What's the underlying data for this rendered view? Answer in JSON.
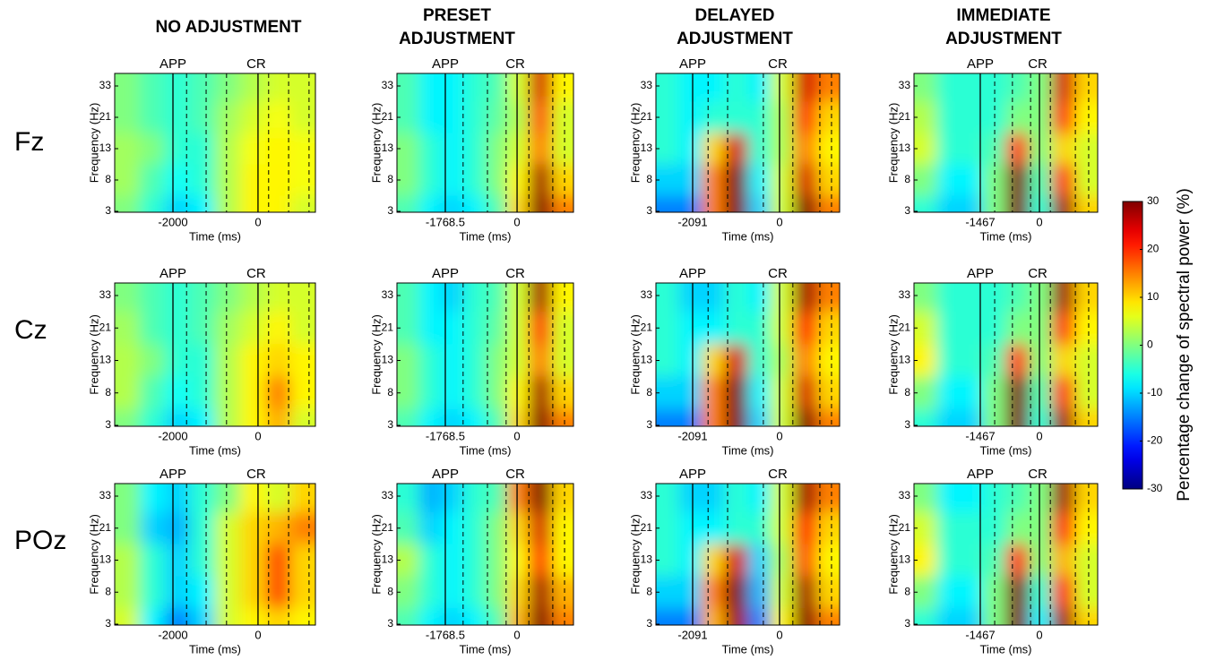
{
  "chart_data": {
    "type": "heatmap",
    "x_label": "Time (ms)",
    "y_label": "Frequency (Hz)",
    "yticks": [
      3,
      8,
      13,
      21,
      33
    ],
    "event_labels": [
      "APP",
      "CR"
    ],
    "columns": [
      {
        "title": [
          "NO ADJUSTMENT"
        ],
        "xlim": [
          -3370,
          1350
        ],
        "xticks": [
          -2000,
          0
        ],
        "dashed_lines": [
          -1680,
          -1220,
          -740,
          250,
          720,
          1200
        ]
      },
      {
        "title": [
          "PRESET",
          "ADJUSTMENT"
        ],
        "xlim": [
          -2960,
          1390
        ],
        "xticks": [
          -1768.5,
          0
        ],
        "dashed_lines": [
          -1330,
          -730,
          -270,
          290,
          880,
          1170
        ]
      },
      {
        "title": [
          "DELAYED",
          "ADJUSTMENT"
        ],
        "xlim": [
          -2975,
          1445
        ],
        "xticks": [
          -2091,
          0
        ],
        "dashed_lines": [
          -1720,
          -1250,
          -390,
          320,
          970,
          1250
        ]
      },
      {
        "title": [
          "IMMEDIATE",
          "ADJUSTMENT"
        ],
        "xlim": [
          -3110,
          1443
        ],
        "xticks": [
          -1467,
          0
        ],
        "dashed_lines": [
          -1110,
          -670,
          -220,
          270,
          890,
          1220
        ]
      }
    ],
    "rows": [
      {
        "label": "Fz",
        "panels": [
          {
            "z": [
              [
                0,
                -3,
                -5,
                -3,
                0,
                3,
                5,
                5
              ],
              [
                0,
                -3,
                -5,
                -3,
                2,
                5,
                7,
                5
              ],
              [
                2,
                0,
                -5,
                -5,
                3,
                7,
                8,
                7
              ],
              [
                2,
                -3,
                -7,
                -5,
                3,
                8,
                8,
                7
              ],
              [
                0,
                -5,
                -10,
                -8,
                3,
                8,
                8,
                5
              ]
            ]
          },
          {
            "z": [
              [
                -3,
                -8,
                -8,
                -5,
                -3,
                5,
                25,
                8
              ],
              [
                -3,
                -8,
                -8,
                -5,
                -2,
                3,
                18,
                5
              ],
              [
                0,
                -5,
                -8,
                -5,
                0,
                5,
                15,
                5
              ],
              [
                0,
                -5,
                -8,
                -5,
                0,
                8,
                28,
                10
              ],
              [
                -3,
                -8,
                -10,
                -8,
                -3,
                10,
                30,
                15
              ]
            ]
          },
          {
            "z": [
              [
                -5,
                -8,
                -8,
                -5,
                -8,
                5,
                25,
                15
              ],
              [
                -5,
                -8,
                -5,
                -5,
                -5,
                3,
                20,
                10
              ],
              [
                -5,
                -8,
                10,
                25,
                -5,
                3,
                15,
                8
              ],
              [
                -10,
                -10,
                15,
                30,
                -8,
                5,
                25,
                10
              ],
              [
                -15,
                -15,
                15,
                30,
                -10,
                5,
                30,
                15
              ]
            ]
          },
          {
            "z": [
              [
                0,
                -5,
                -5,
                -5,
                -3,
                0,
                25,
                10
              ],
              [
                3,
                -5,
                -5,
                -5,
                0,
                0,
                20,
                8
              ],
              [
                5,
                -5,
                -5,
                -3,
                20,
                0,
                10,
                5
              ],
              [
                0,
                -8,
                -8,
                0,
                30,
                -3,
                20,
                5
              ],
              [
                -5,
                -10,
                -10,
                0,
                30,
                -5,
                28,
                10
              ]
            ]
          }
        ]
      },
      {
        "label": "Cz",
        "panels": [
          {
            "z": [
              [
                0,
                -3,
                -5,
                -3,
                0,
                3,
                5,
                5
              ],
              [
                2,
                -3,
                -5,
                -3,
                2,
                5,
                8,
                5
              ],
              [
                3,
                0,
                -5,
                -5,
                3,
                8,
                10,
                8
              ],
              [
                3,
                -3,
                -7,
                -5,
                3,
                8,
                15,
                8
              ],
              [
                0,
                -5,
                -10,
                -8,
                3,
                8,
                12,
                5
              ]
            ]
          },
          {
            "z": [
              [
                -3,
                -8,
                -10,
                -5,
                -3,
                5,
                28,
                8
              ],
              [
                -3,
                -8,
                -8,
                -5,
                -2,
                5,
                20,
                5
              ],
              [
                0,
                -5,
                -8,
                -5,
                0,
                5,
                15,
                5
              ],
              [
                0,
                -5,
                -8,
                -5,
                0,
                8,
                28,
                10
              ],
              [
                -3,
                -8,
                -10,
                -8,
                -3,
                10,
                30,
                15
              ]
            ]
          },
          {
            "z": [
              [
                -5,
                -10,
                -10,
                -5,
                -8,
                5,
                28,
                15
              ],
              [
                -5,
                -8,
                -8,
                -5,
                -5,
                5,
                22,
                10
              ],
              [
                -5,
                -8,
                10,
                25,
                -5,
                3,
                15,
                8
              ],
              [
                -10,
                -10,
                15,
                30,
                -8,
                5,
                25,
                10
              ],
              [
                -15,
                -15,
                15,
                30,
                -10,
                5,
                30,
                15
              ]
            ]
          },
          {
            "z": [
              [
                0,
                -5,
                -5,
                -5,
                -3,
                0,
                28,
                10
              ],
              [
                5,
                -5,
                -5,
                -5,
                0,
                0,
                20,
                8
              ],
              [
                8,
                -5,
                -5,
                -3,
                20,
                0,
                10,
                5
              ],
              [
                0,
                -8,
                -8,
                0,
                30,
                -3,
                20,
                5
              ],
              [
                -5,
                -10,
                -10,
                0,
                30,
                -5,
                28,
                10
              ]
            ]
          }
        ]
      },
      {
        "label": "POz",
        "panels": [
          {
            "z": [
              [
                0,
                -8,
                -10,
                -5,
                0,
                8,
                5,
                10
              ],
              [
                0,
                -10,
                -12,
                -5,
                5,
                10,
                12,
                15
              ],
              [
                3,
                -5,
                -10,
                -5,
                5,
                10,
                18,
                10
              ],
              [
                3,
                -5,
                -10,
                -8,
                5,
                10,
                18,
                10
              ],
              [
                5,
                -8,
                -15,
                -10,
                5,
                8,
                10,
                8
              ]
            ]
          },
          {
            "z": [
              [
                -5,
                -12,
                -10,
                -5,
                -3,
                15,
                30,
                10
              ],
              [
                -3,
                -10,
                -8,
                -5,
                0,
                10,
                25,
                8
              ],
              [
                3,
                -5,
                -8,
                -5,
                0,
                8,
                20,
                8
              ],
              [
                0,
                -5,
                -8,
                -5,
                0,
                10,
                28,
                12
              ],
              [
                -3,
                -8,
                -10,
                -8,
                -3,
                12,
                30,
                15
              ]
            ]
          },
          {
            "z": [
              [
                -5,
                -10,
                -10,
                -5,
                -8,
                5,
                28,
                15
              ],
              [
                -5,
                -8,
                -8,
                -5,
                -5,
                5,
                22,
                10
              ],
              [
                -5,
                -8,
                10,
                25,
                -10,
                3,
                18,
                8
              ],
              [
                -10,
                -10,
                15,
                30,
                -12,
                5,
                28,
                10
              ],
              [
                -15,
                -15,
                12,
                28,
                -15,
                8,
                30,
                15
              ]
            ]
          },
          {
            "z": [
              [
                0,
                -8,
                -8,
                -5,
                -3,
                0,
                28,
                10
              ],
              [
                5,
                -5,
                -5,
                -5,
                0,
                0,
                22,
                8
              ],
              [
                8,
                -5,
                -5,
                -3,
                22,
                0,
                12,
                5
              ],
              [
                0,
                -8,
                -8,
                0,
                30,
                -5,
                22,
                5
              ],
              [
                -5,
                -10,
                -10,
                0,
                30,
                -8,
                28,
                10
              ]
            ]
          }
        ]
      }
    ],
    "colorbar": {
      "label": "Percentage change of spectral power (%)",
      "lim": [
        -30,
        30
      ],
      "ticks": [
        30,
        20,
        10,
        0,
        -10,
        -20,
        -30
      ]
    }
  }
}
